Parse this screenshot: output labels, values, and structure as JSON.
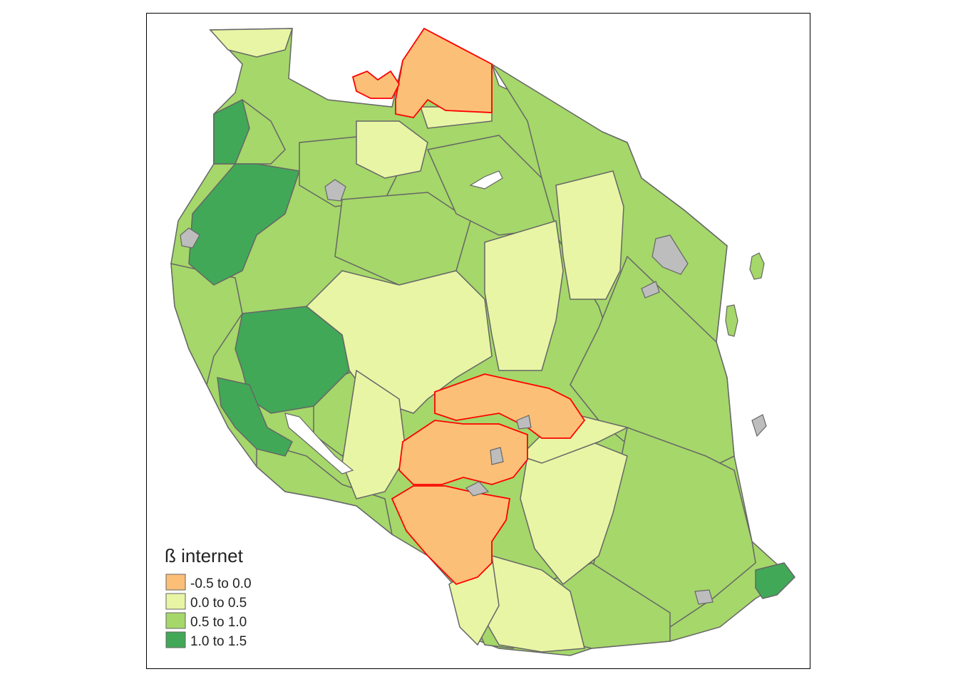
{
  "colors": {
    "class_neg": "#fbbf78",
    "class_low": "#e8f5a5",
    "class_mid": "#a5d76a",
    "class_high": "#41a858",
    "no_data": "#bdbdbd",
    "border": "#666666",
    "highlight_border": "#ff0000",
    "water": "#ffffff"
  },
  "legend": {
    "title": "ß internet",
    "items": [
      {
        "label": "-0.5 to 0.0",
        "color": "#fbbf78"
      },
      {
        "label": "0.0 to 0.5",
        "color": "#e8f5a5"
      },
      {
        "label": "0.5 to 1.0",
        "color": "#a5d76a"
      },
      {
        "label": "1.0 to 1.5",
        "color": "#41a858"
      }
    ]
  }
}
